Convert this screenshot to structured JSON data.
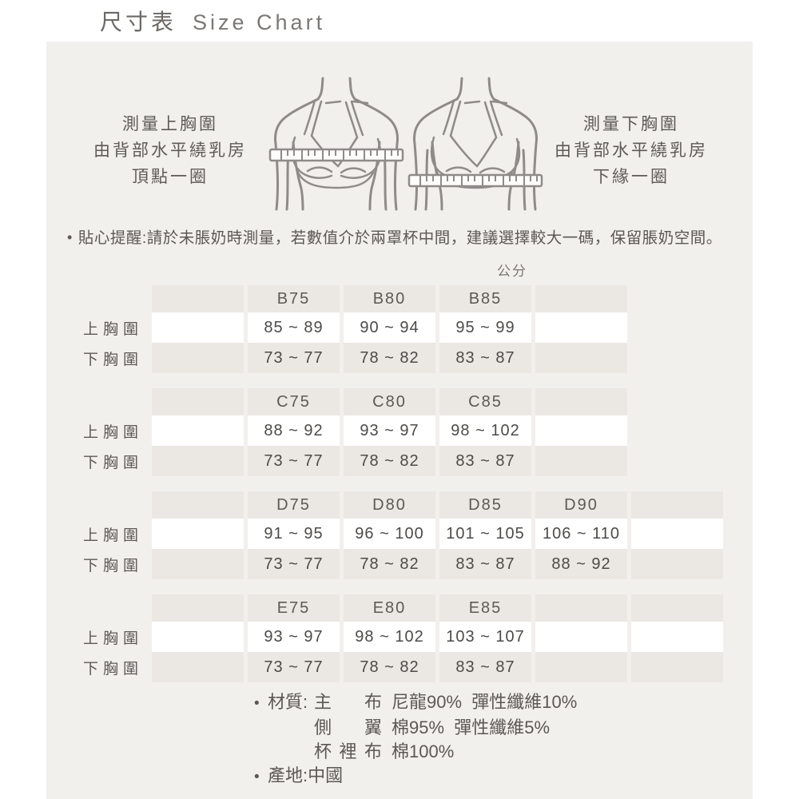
{
  "page": {
    "title_zh": "尺寸表",
    "title_en": "Size Chart"
  },
  "measure_guide": {
    "left": {
      "line1": "測量上胸圍",
      "line2": "由背部水平繞乳房",
      "line3": "頂點一圈"
    },
    "right": {
      "line1": "測量下胸圍",
      "line2": "由背部水平繞乳房",
      "line3": "下緣一圈"
    }
  },
  "reminder": {
    "bullet": "•",
    "text": "貼心提醒:請於未脹奶時測量，若數值介於兩罩杯中間，建議選擇較大一碼，保留脹奶空間。"
  },
  "unit_label": "公分",
  "row_labels": {
    "upper": "上胸圍",
    "under": "下胸圍"
  },
  "size_tables": [
    {
      "id": "B",
      "columns": [
        "",
        "B75",
        "B80",
        "B85",
        ""
      ],
      "rows": [
        {
          "label": "上胸圍",
          "values": [
            "",
            "85 ~ 89",
            "90 ~ 94",
            "95 ~ 99",
            ""
          ]
        },
        {
          "label": "下胸圍",
          "values": [
            "",
            "73 ~ 77",
            "78 ~ 82",
            "83 ~ 87",
            ""
          ]
        }
      ]
    },
    {
      "id": "C",
      "columns": [
        "",
        "C75",
        "C80",
        "C85",
        ""
      ],
      "rows": [
        {
          "label": "上胸圍",
          "values": [
            "",
            "88 ~ 92",
            "93 ~ 97",
            "98 ~ 102",
            ""
          ]
        },
        {
          "label": "下胸圍",
          "values": [
            "",
            "73 ~ 77",
            "78 ~ 82",
            "83 ~ 87",
            ""
          ]
        }
      ]
    },
    {
      "id": "D",
      "columns": [
        "",
        "D75",
        "D80",
        "D85",
        "D90",
        ""
      ],
      "rows": [
        {
          "label": "上胸圍",
          "values": [
            "",
            "91 ~ 95",
            "96 ~ 100",
            "101 ~ 105",
            "106 ~ 110",
            ""
          ]
        },
        {
          "label": "下胸圍",
          "values": [
            "",
            "73 ~ 77",
            "78 ~ 82",
            "83 ~ 87",
            "88 ~ 92",
            ""
          ]
        }
      ]
    },
    {
      "id": "E",
      "columns": [
        "",
        "E75",
        "E80",
        "E85",
        "",
        ""
      ],
      "rows": [
        {
          "label": "上胸圍",
          "values": [
            "",
            "93 ~ 97",
            "98 ~ 102",
            "103 ~ 107",
            "",
            ""
          ]
        },
        {
          "label": "下胸圍",
          "values": [
            "",
            "73 ~ 77",
            "78 ~ 82",
            "83 ~ 87",
            "",
            ""
          ]
        }
      ]
    }
  ],
  "materials": {
    "bullet": "•",
    "label": "材質:",
    "rows": [
      {
        "cols": [
          "主",
          "布"
        ],
        "desc": "尼龍90%  彈性纖維10%"
      },
      {
        "cols": [
          "側",
          "翼"
        ],
        "desc": "棉95%  彈性纖維5%"
      },
      {
        "cols": [
          "杯",
          "裡",
          "布"
        ],
        "desc": "棉100%"
      }
    ],
    "origin": "產地:中國"
  },
  "colors": {
    "page_bg": "#ffffff",
    "panel_bg": "#f2f0ed",
    "cell_gray": "#ebe7e3",
    "cell_white": "#ffffff",
    "text_gray": "#5b5855",
    "value_text": "#4d4b48",
    "illustration_line": "#8e8b88"
  }
}
